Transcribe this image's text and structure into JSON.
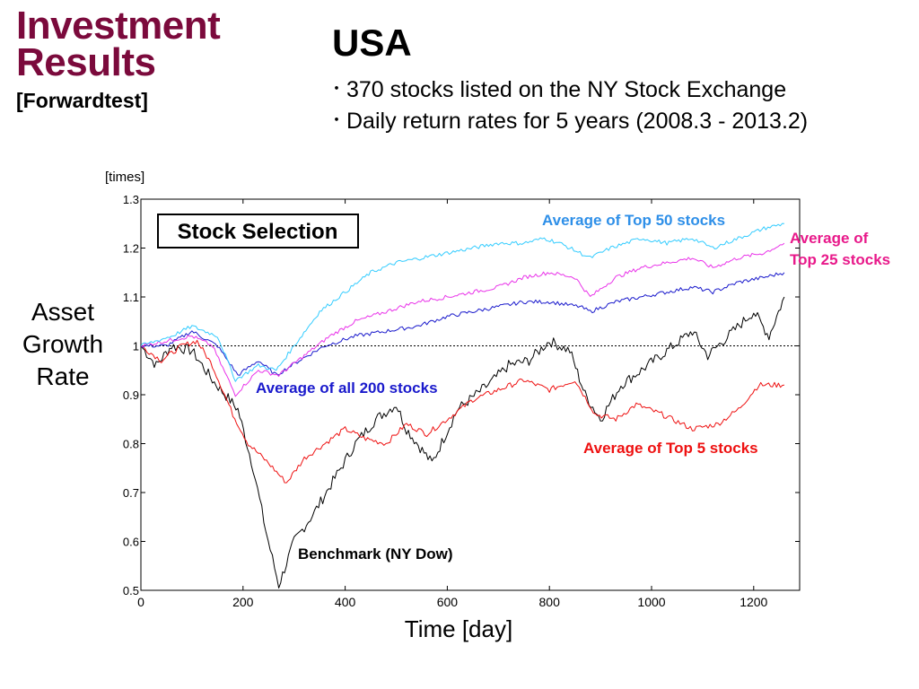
{
  "header": {
    "title_line1": "Investment",
    "title_line2": "Results",
    "subtitle": "[Forwardtest]",
    "country": "USA",
    "bullets": [
      "370 stocks listed on the NY Stock Exchange",
      "Daily return rates for 5 years (2008.3 - 2013.2)"
    ]
  },
  "chart_data": {
    "type": "line",
    "title": "Stock Selection",
    "ylabel": "Asset Growth Rate",
    "yunit": "[times]",
    "xlabel": "Time [day]",
    "xlim": [
      0,
      1290
    ],
    "ylim": [
      0.5,
      1.3
    ],
    "xticks": [
      "0",
      "200",
      "400",
      "600",
      "800",
      "1000",
      "1200"
    ],
    "yticks": [
      "0.5",
      "0.6",
      "0.7",
      "0.8",
      "0.9",
      "1",
      "1.1",
      "1.2",
      "1.3"
    ],
    "reference_line": 1.0,
    "grid": false,
    "series": [
      {
        "name": "Average of Top 50 stocks",
        "color": "#33ccff",
        "points": [
          [
            0,
            1.0
          ],
          [
            60,
            1.02
          ],
          [
            100,
            1.04
          ],
          [
            150,
            1.02
          ],
          [
            185,
            0.93
          ],
          [
            230,
            0.96
          ],
          [
            265,
            0.95
          ],
          [
            300,
            1.0
          ],
          [
            350,
            1.07
          ],
          [
            400,
            1.11
          ],
          [
            450,
            1.15
          ],
          [
            500,
            1.17
          ],
          [
            550,
            1.18
          ],
          [
            600,
            1.19
          ],
          [
            650,
            1.2
          ],
          [
            700,
            1.21
          ],
          [
            750,
            1.21
          ],
          [
            790,
            1.22
          ],
          [
            820,
            1.21
          ],
          [
            880,
            1.18
          ],
          [
            920,
            1.2
          ],
          [
            980,
            1.22
          ],
          [
            1030,
            1.21
          ],
          [
            1080,
            1.22
          ],
          [
            1120,
            1.2
          ],
          [
            1170,
            1.22
          ],
          [
            1220,
            1.24
          ],
          [
            1260,
            1.25
          ]
        ]
      },
      {
        "name": "Average of Top 25 stocks",
        "color": "#e933e9",
        "points": [
          [
            0,
            1.0
          ],
          [
            50,
            1.01
          ],
          [
            100,
            1.02
          ],
          [
            140,
            1.0
          ],
          [
            185,
            0.9
          ],
          [
            230,
            0.95
          ],
          [
            270,
            0.94
          ],
          [
            320,
            0.98
          ],
          [
            370,
            1.02
          ],
          [
            420,
            1.05
          ],
          [
            480,
            1.07
          ],
          [
            540,
            1.09
          ],
          [
            600,
            1.1
          ],
          [
            650,
            1.11
          ],
          [
            700,
            1.12
          ],
          [
            750,
            1.14
          ],
          [
            800,
            1.15
          ],
          [
            850,
            1.14
          ],
          [
            880,
            1.1
          ],
          [
            930,
            1.14
          ],
          [
            980,
            1.16
          ],
          [
            1030,
            1.17
          ],
          [
            1080,
            1.18
          ],
          [
            1120,
            1.16
          ],
          [
            1170,
            1.18
          ],
          [
            1220,
            1.19
          ],
          [
            1260,
            1.21
          ]
        ]
      },
      {
        "name": "Average of all 200 stocks",
        "color": "#1a1acc",
        "points": [
          [
            0,
            1.0
          ],
          [
            50,
            1.0
          ],
          [
            100,
            1.03
          ],
          [
            150,
            1.0
          ],
          [
            190,
            0.94
          ],
          [
            230,
            0.97
          ],
          [
            265,
            0.94
          ],
          [
            310,
            0.97
          ],
          [
            360,
            1.0
          ],
          [
            420,
            1.02
          ],
          [
            480,
            1.03
          ],
          [
            540,
            1.04
          ],
          [
            600,
            1.06
          ],
          [
            650,
            1.07
          ],
          [
            700,
            1.08
          ],
          [
            750,
            1.09
          ],
          [
            800,
            1.09
          ],
          [
            860,
            1.08
          ],
          [
            880,
            1.07
          ],
          [
            930,
            1.09
          ],
          [
            980,
            1.1
          ],
          [
            1030,
            1.11
          ],
          [
            1080,
            1.12
          ],
          [
            1120,
            1.11
          ],
          [
            1170,
            1.13
          ],
          [
            1220,
            1.14
          ],
          [
            1260,
            1.15
          ]
        ]
      },
      {
        "name": "Average of Top 5 stocks",
        "color": "#ee1111",
        "points": [
          [
            0,
            1.0
          ],
          [
            40,
            0.97
          ],
          [
            80,
            1.0
          ],
          [
            110,
            1.01
          ],
          [
            140,
            0.96
          ],
          [
            180,
            0.86
          ],
          [
            210,
            0.8
          ],
          [
            250,
            0.76
          ],
          [
            285,
            0.72
          ],
          [
            320,
            0.77
          ],
          [
            360,
            0.8
          ],
          [
            400,
            0.83
          ],
          [
            440,
            0.81
          ],
          [
            480,
            0.8
          ],
          [
            520,
            0.84
          ],
          [
            560,
            0.82
          ],
          [
            600,
            0.85
          ],
          [
            650,
            0.89
          ],
          [
            700,
            0.91
          ],
          [
            750,
            0.93
          ],
          [
            800,
            0.91
          ],
          [
            850,
            0.93
          ],
          [
            890,
            0.86
          ],
          [
            930,
            0.85
          ],
          [
            970,
            0.88
          ],
          [
            1020,
            0.86
          ],
          [
            1080,
            0.83
          ],
          [
            1130,
            0.84
          ],
          [
            1170,
            0.87
          ],
          [
            1210,
            0.92
          ],
          [
            1260,
            0.92
          ]
        ]
      },
      {
        "name": "Benchmark (NY Dow)",
        "color": "#000000",
        "points": [
          [
            0,
            1.0
          ],
          [
            30,
            0.96
          ],
          [
            60,
            1.0
          ],
          [
            100,
            0.99
          ],
          [
            140,
            0.93
          ],
          [
            190,
            0.87
          ],
          [
            220,
            0.75
          ],
          [
            245,
            0.62
          ],
          [
            270,
            0.51
          ],
          [
            300,
            0.6
          ],
          [
            340,
            0.66
          ],
          [
            380,
            0.73
          ],
          [
            420,
            0.8
          ],
          [
            460,
            0.85
          ],
          [
            500,
            0.88
          ],
          [
            520,
            0.83
          ],
          [
            570,
            0.76
          ],
          [
            620,
            0.87
          ],
          [
            680,
            0.92
          ],
          [
            720,
            0.96
          ],
          [
            760,
            0.97
          ],
          [
            800,
            1.01
          ],
          [
            840,
            0.99
          ],
          [
            870,
            0.9
          ],
          [
            900,
            0.85
          ],
          [
            940,
            0.92
          ],
          [
            980,
            0.95
          ],
          [
            1030,
            0.99
          ],
          [
            1080,
            1.03
          ],
          [
            1110,
            0.98
          ],
          [
            1160,
            1.03
          ],
          [
            1200,
            1.07
          ],
          [
            1230,
            1.02
          ],
          [
            1260,
            1.1
          ]
        ]
      }
    ],
    "labels": {
      "top50": "Average of Top 50 stocks",
      "top25_line1": "Average of",
      "top25_line2": "Top 25 stocks",
      "all200": "Average of all 200 stocks",
      "top5": "Average of Top 5 stocks",
      "benchmark": "Benchmark (NY Dow)"
    }
  }
}
